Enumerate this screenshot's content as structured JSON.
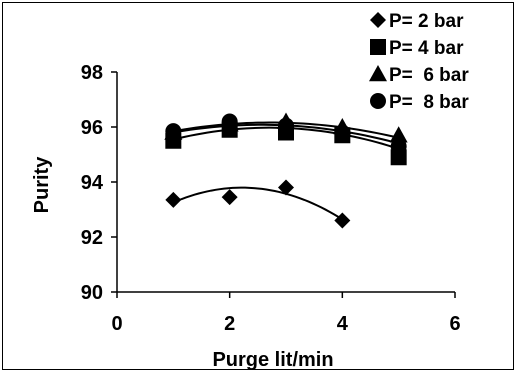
{
  "chart_data": {
    "type": "scatter",
    "title": "",
    "xlabel": "Purge lit/min",
    "ylabel": "Purity",
    "xlim": [
      0,
      6
    ],
    "ylim": [
      90,
      98
    ],
    "xticks": [
      "0",
      "2",
      "4",
      "6"
    ],
    "yticks": [
      "90",
      "92",
      "94",
      "96",
      "98"
    ],
    "grid": false,
    "legend_position": "top-right",
    "trendline": "quadratic",
    "series": [
      {
        "name": "P= 2 bar",
        "marker": "diamond",
        "x": [
          1,
          2,
          3,
          4
        ],
        "y": [
          93.35,
          93.45,
          93.8,
          92.6
        ],
        "trend_y": [
          93.3,
          93.65,
          93.7,
          92.6
        ]
      },
      {
        "name": "P= 4 bar",
        "marker": "square",
        "x": [
          1,
          2,
          3,
          4,
          5
        ],
        "y": [
          95.5,
          95.9,
          95.8,
          95.7,
          94.9
        ],
        "trend_y": [
          95.55,
          95.9,
          95.95,
          95.75,
          95.2
        ]
      },
      {
        "name": "P=  6 bar",
        "marker": "triangle",
        "x": [
          1,
          2,
          3,
          4,
          5
        ],
        "y": [
          95.8,
          96.1,
          96.2,
          96.0,
          95.7
        ],
        "trend_y": [
          95.85,
          96.1,
          96.15,
          96.0,
          95.6
        ]
      },
      {
        "name": "P=  8 bar",
        "marker": "circle",
        "x": [
          1,
          2,
          3,
          4,
          5
        ],
        "y": [
          95.85,
          96.2,
          96.05,
          95.8,
          95.3
        ],
        "trend_y": [
          95.8,
          96.05,
          96.05,
          95.85,
          95.4
        ]
      }
    ],
    "colors": {
      "marker": "#000000",
      "line": "#000000"
    }
  }
}
